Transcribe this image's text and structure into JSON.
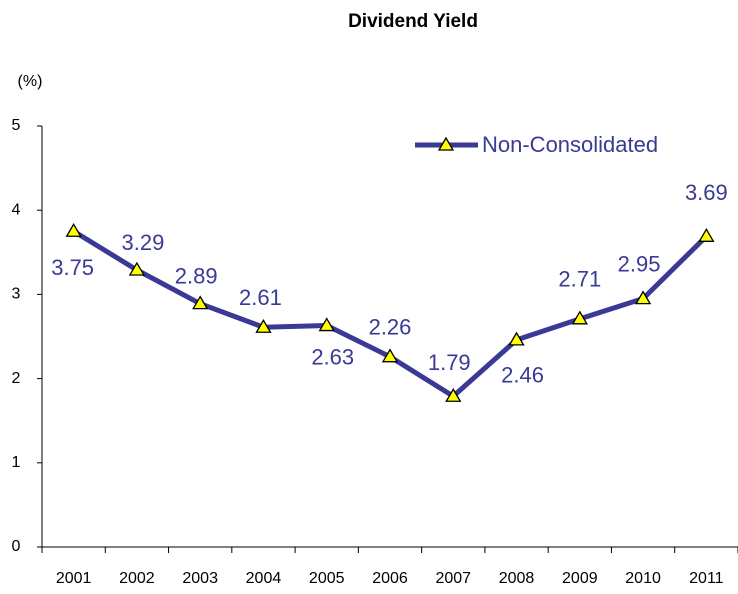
{
  "chart_data": {
    "type": "line",
    "title": "Dividend Yield",
    "y_label": "(%)",
    "categories": [
      "2001",
      "2002",
      "2003",
      "2004",
      "2005",
      "2006",
      "2007",
      "2008",
      "2009",
      "2010",
      "2011"
    ],
    "series": [
      {
        "name": "Non-Consolidated",
        "color": "#3a3a96",
        "marker_color": "#ffff00",
        "values": [
          3.75,
          3.29,
          2.89,
          2.61,
          2.63,
          2.26,
          1.79,
          2.46,
          2.71,
          2.95,
          3.69
        ]
      }
    ],
    "ylim": [
      0,
      5
    ],
    "yticks": [
      0,
      1,
      2,
      3,
      4,
      5
    ],
    "grid": false,
    "legend": "top-right"
  }
}
